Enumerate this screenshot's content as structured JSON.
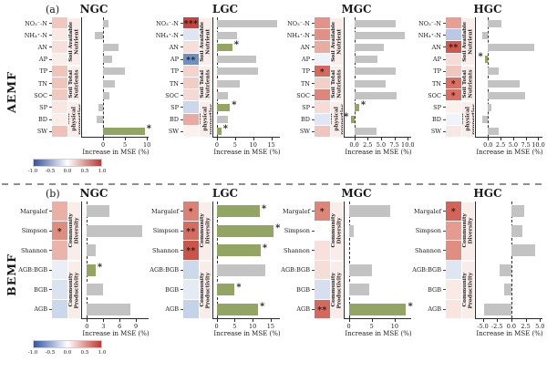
{
  "figure_title": "Random forest predictor importance: Increase in MSE (%) with heatmap of correlations",
  "colors": {
    "bar_gray": "#c3c3c3",
    "bar_green": "#92a562",
    "group_strip_bg": "#f9ece9",
    "spine": "#2b2b2b",
    "colorbar_left": "#3353a4",
    "colorbar_mid": "#ffffff",
    "colorbar_right": "#c13832"
  },
  "sections": [
    {
      "letter": "(a)",
      "side_label": "AEMF",
      "groups": [
        {
          "label": "Soil Available Nutrient",
          "span": 4
        },
        {
          "label": "Soil Total Nutrients",
          "span": 3
        },
        {
          "label": "Soil physical properties",
          "span": 3
        }
      ],
      "panels": [
        0,
        1,
        2,
        3
      ],
      "colorbar_ticks": [
        "-1.0",
        "-0.5",
        "0.0",
        "0.5",
        "1.0"
      ]
    },
    {
      "letter": "(b)",
      "side_label": "BEMF",
      "groups": [
        {
          "label": "Community Diversity",
          "span": 3
        },
        {
          "label": "Community Productivity",
          "span": 3
        }
      ],
      "panels": [
        4,
        5,
        6,
        7
      ],
      "colorbar_ticks": [
        "-1.0",
        "-0.5",
        "0.0",
        "0.5",
        "1.0"
      ]
    }
  ],
  "chart_data": [
    {
      "type": "bar",
      "section": "AEMF",
      "title": "NGC",
      "categories": [
        "NO₃⁻-N",
        "NH₄⁺-N",
        "AN",
        "AP",
        "TP",
        "TN",
        "SOC",
        "SP",
        "BD",
        "SW"
      ],
      "values": [
        1.2,
        -1.8,
        3.5,
        2.0,
        5.0,
        2.6,
        1.5,
        -1.0,
        -1.5,
        9.5
      ],
      "bar_colors": [
        "gray",
        "gray",
        "gray",
        "gray",
        "gray",
        "gray",
        "gray",
        "gray",
        "gray",
        "green"
      ],
      "bar_stars": [
        "",
        "",
        "",
        "",
        "",
        "",
        "",
        "",
        "",
        "*"
      ],
      "heat_colors": [
        "#f0c8bf",
        "#f9e8e3",
        "#f7e0da",
        "#faeee9",
        "#efc5bb",
        "#efc5bb",
        "#f0cac1",
        "#f8e7e1",
        "#faeeea",
        "#eec2b8"
      ],
      "heat_stars": [
        "",
        "",
        "",
        "",
        "",
        "",
        "",
        "",
        "",
        ""
      ],
      "xlabel": "Increase in MSE (%)",
      "xlim": [
        -4.8,
        10.6
      ],
      "xticks": [
        {
          "v": 0,
          "label": "0"
        },
        {
          "v": 5,
          "label": "5"
        },
        {
          "v": 10,
          "label": "10"
        }
      ]
    },
    {
      "type": "bar",
      "section": "AEMF",
      "title": "LGC",
      "categories": [
        "NO₃⁻-N",
        "NH₄⁺-N",
        "AN",
        "AP",
        "TP",
        "TN",
        "SOC",
        "SP",
        "BD",
        "SW"
      ],
      "values": [
        16.5,
        5.5,
        4.2,
        10.8,
        11.2,
        6.2,
        3.0,
        3.6,
        3.0,
        1.2
      ],
      "bar_colors": [
        "gray",
        "gray",
        "green",
        "gray",
        "gray",
        "gray",
        "gray",
        "green",
        "gray",
        "green"
      ],
      "bar_stars": [
        "",
        "",
        "*",
        "",
        "",
        "",
        "",
        "*",
        "",
        "*"
      ],
      "heat_colors": [
        "#c5443c",
        "#dfe6f3",
        "#f7ded8",
        "#6f90c5",
        "#f3d3cc",
        "#f1cdc5",
        "#f5dad3",
        "#cbd8ec",
        "#e9aba1",
        "#fbf2ef"
      ],
      "heat_stars": [
        "***",
        "",
        "",
        "**",
        "",
        "",
        "",
        "",
        "",
        ""
      ],
      "xlabel": "Increase in MSE (%)",
      "xlim": [
        -1.0,
        17.6
      ],
      "xticks": [
        {
          "v": 0,
          "label": "0"
        },
        {
          "v": 5,
          "label": "5"
        },
        {
          "v": 10,
          "label": "10"
        },
        {
          "v": 15,
          "label": "15"
        }
      ]
    },
    {
      "type": "bar",
      "section": "AEMF",
      "title": "MGC",
      "categories": [
        "NO₃⁻-N",
        "NH₄⁺-N",
        "AN",
        "AP",
        "TP",
        "TN",
        "SOC",
        "SP",
        "BD",
        "SW"
      ],
      "values": [
        7.8,
        9.5,
        5.6,
        4.4,
        7.8,
        5.8,
        7.9,
        0.9,
        -0.6,
        4.2
      ],
      "bar_colors": [
        "gray",
        "gray",
        "gray",
        "gray",
        "gray",
        "gray",
        "gray",
        "green",
        "green",
        "gray"
      ],
      "bar_stars": [
        "",
        "",
        "",
        "",
        "",
        "",
        "",
        "*",
        "*",
        ""
      ],
      "heat_colors": [
        "#e2948a",
        "#e09085",
        "#e8aca1",
        "#eff2f9",
        "#d5695e",
        "#f2cfc7",
        "#dd867b",
        "#f5dcd6",
        "#dfe7f4",
        "#efc6bd"
      ],
      "heat_stars": [
        "",
        "",
        "",
        "",
        "*",
        "",
        "",
        "",
        "",
        ""
      ],
      "xlabel": "Increase in MSE (%)",
      "xlim": [
        -1.8,
        10.8
      ],
      "xticks": [
        {
          "v": 0,
          "label": "0.0"
        },
        {
          "v": 2.5,
          "label": "2.5"
        },
        {
          "v": 5,
          "label": "5.0"
        },
        {
          "v": 7.5,
          "label": "7.5"
        },
        {
          "v": 10,
          "label": "10.0"
        }
      ]
    },
    {
      "type": "bar",
      "section": "AEMF",
      "title": "HGC",
      "categories": [
        "NO₃⁻-N",
        "NH₄⁺-N",
        "AN",
        "AP",
        "TP",
        "TN",
        "SOC",
        "SP",
        "BD",
        "SW"
      ],
      "values": [
        2.6,
        -1.2,
        9.2,
        -0.5,
        2.1,
        6.3,
        7.4,
        0.7,
        -1.1,
        2.1
      ],
      "bar_colors": [
        "gray",
        "gray",
        "gray",
        "green",
        "gray",
        "gray",
        "gray",
        "gray",
        "gray",
        "gray"
      ],
      "bar_stars": [
        "",
        "",
        "",
        "*",
        "",
        "",
        "",
        "",
        "",
        ""
      ],
      "heat_colors": [
        "#e89e93",
        "#b9c8e5",
        "#cf584e",
        "#f5dcd6",
        "#f0c7be",
        "#d96f63",
        "#d96f63",
        "#fbf2ee",
        "#eff3fa",
        "#f8e8e3"
      ],
      "heat_stars": [
        "",
        "",
        "**",
        "",
        "",
        "*",
        "*",
        "",
        "",
        ""
      ],
      "xlabel": "Increase in MSE (%)",
      "xlim": [
        -2.4,
        11.0
      ],
      "xticks": [
        {
          "v": 0,
          "label": "0.0"
        },
        {
          "v": 2.5,
          "label": "2.5"
        },
        {
          "v": 5,
          "label": "5.0"
        },
        {
          "v": 7.5,
          "label": "7.5"
        },
        {
          "v": 10,
          "label": "10.0"
        }
      ]
    },
    {
      "type": "bar",
      "section": "BEMF",
      "title": "NGC",
      "categories": [
        "Margalef",
        "Simpson",
        "Shannon",
        "AGB:BGB",
        "BGB",
        "AGB"
      ],
      "values": [
        4.2,
        10.2,
        1.6,
        1.6,
        3.0,
        8.0
      ],
      "bar_colors": [
        "gray",
        "gray",
        "gray",
        "green",
        "gray",
        "gray"
      ],
      "bar_stars": [
        "",
        "",
        "",
        "*",
        "",
        ""
      ],
      "heat_colors": [
        "#eab0a6",
        "#de8d81",
        "#eab4aa",
        "#e9eef7",
        "#dbe3f1",
        "#cbd7eb"
      ],
      "heat_stars": [
        "",
        "*",
        "",
        "",
        "",
        ""
      ],
      "xlabel": "Increase in MSE (%)",
      "xlim": [
        -0.9,
        11.5
      ],
      "xticks": [
        {
          "v": 0,
          "label": "0"
        },
        {
          "v": 3,
          "label": "3"
        },
        {
          "v": 6,
          "label": "6"
        },
        {
          "v": 9,
          "label": "9"
        }
      ]
    },
    {
      "type": "bar",
      "section": "BEMF",
      "title": "LGC",
      "categories": [
        "Margalef",
        "Simpson",
        "Shannon",
        "AGB:BGB",
        "BGB",
        "AGB"
      ],
      "values": [
        12.0,
        15.8,
        12.2,
        13.5,
        5.0,
        11.5
      ],
      "bar_colors": [
        "green",
        "green",
        "green",
        "gray",
        "green",
        "green"
      ],
      "bar_stars": [
        "*",
        "*",
        "*",
        "",
        "*",
        "*"
      ],
      "heat_colors": [
        "#db8175",
        "#d66c60",
        "#cc5348",
        "#ccd9ec",
        "#e5ebf5",
        "#c5d3e9"
      ],
      "heat_stars": [
        "*",
        "**",
        "**",
        "",
        "",
        ""
      ],
      "xlabel": "Increase in MSE (%)",
      "xlim": [
        -0.9,
        17.8
      ],
      "xticks": [
        {
          "v": 0,
          "label": "0"
        },
        {
          "v": 5,
          "label": "5"
        },
        {
          "v": 10,
          "label": "10"
        },
        {
          "v": 15,
          "label": "15"
        }
      ]
    },
    {
      "type": "bar",
      "section": "BEMF",
      "title": "MGC",
      "categories": [
        "Margalef",
        "Simpson",
        "Shannon",
        "AGB:BGB",
        "BGB",
        "AGB"
      ],
      "values": [
        9.0,
        1.0,
        0.0,
        5.0,
        4.4,
        12.5
      ],
      "bar_colors": [
        "gray",
        "gray",
        "gray",
        "gray",
        "gray",
        "green"
      ],
      "bar_stars": [
        "",
        "",
        "",
        "",
        "",
        "*"
      ],
      "heat_colors": [
        "#dd8579",
        "#fefefe",
        "#f8e1dc",
        "#f6ded8",
        "#d6dfef",
        "#d4685d"
      ],
      "heat_stars": [
        "*",
        "",
        "",
        "",
        "",
        "**"
      ],
      "xlabel": "Increase in MSE (%)",
      "xlim": [
        -0.9,
        13.8
      ],
      "xticks": [
        {
          "v": 0,
          "label": "0"
        },
        {
          "v": 5,
          "label": "5"
        },
        {
          "v": 10,
          "label": "10"
        }
      ]
    },
    {
      "type": "bar",
      "section": "BEMF",
      "title": "HGC",
      "categories": [
        "Margalef",
        "Simpson",
        "Shannon",
        "AGB:BGB",
        "BGB",
        "AGB"
      ],
      "values": [
        2.2,
        1.9,
        4.2,
        -2.0,
        -1.2,
        -4.8
      ],
      "bar_colors": [
        "gray",
        "gray",
        "gray",
        "gray",
        "gray",
        "gray"
      ],
      "bar_stars": [
        "",
        "",
        "",
        "",
        "",
        ""
      ],
      "heat_colors": [
        "#d26459",
        "#e69b90",
        "#e08e82",
        "#dfe6f3",
        "#faeae6",
        "#f8e5e0"
      ],
      "heat_stars": [
        "*",
        "",
        "",
        "",
        "",
        ""
      ],
      "xlabel": "Increase in MSE (%)",
      "xlim": [
        -6.2,
        5.6
      ],
      "xticks": [
        {
          "v": -5,
          "label": "-5.0"
        },
        {
          "v": -2.5,
          "label": "-2.5"
        },
        {
          "v": 0,
          "label": "0.0"
        },
        {
          "v": 2.5,
          "label": "2.5"
        },
        {
          "v": 5,
          "label": "5.0"
        }
      ]
    }
  ]
}
